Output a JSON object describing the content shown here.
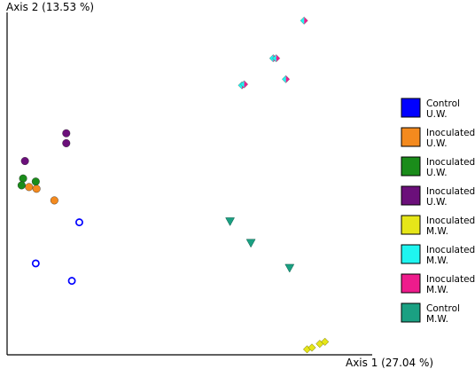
{
  "chart_data": {
    "type": "scatter",
    "title": "",
    "xlabel": "Axis 1 (27.04 %)",
    "ylabel": "Axis 2 (13.53 %)",
    "xlim": [
      0,
      100
    ],
    "ylim": [
      0,
      100
    ],
    "grid": false,
    "legend_position": "right",
    "legend": [
      {
        "line1": "Control",
        "line2": "U.W.",
        "color": "#0000ff"
      },
      {
        "line1": "Inoculated",
        "line2": "U.W.",
        "color": "#f48a1e"
      },
      {
        "line1": "Inoculated",
        "line2": "U.W.",
        "color": "#1a8c1a"
      },
      {
        "line1": "Inoculated",
        "line2": "U.W.",
        "color": "#6b0f7a"
      },
      {
        "line1": "Inoculated",
        "line2": "M.W.",
        "color": "#e6e619"
      },
      {
        "line1": "Inoculated",
        "line2": "M.W.",
        "color": "#1ff5f0"
      },
      {
        "line1": "Inoculated",
        "line2": "M.W.",
        "color": "#ee1c8c"
      },
      {
        "line1": "Control",
        "line2": "M.W.",
        "color": "#1aa082"
      }
    ],
    "series": [
      {
        "marker": "open-circle",
        "color": "#0000ff",
        "points": [
          [
            19.4,
            38.7
          ],
          [
            7.7,
            26.7
          ],
          [
            17.4,
            21.6
          ]
        ]
      },
      {
        "marker": "circle",
        "color": "#f48a1e",
        "points": [
          [
            5.9,
            49.0
          ],
          [
            7.9,
            48.5
          ],
          [
            12.7,
            45.1
          ]
        ]
      },
      {
        "marker": "circle",
        "color": "#1a8c1a",
        "points": [
          [
            4.3,
            51.5
          ],
          [
            7.7,
            50.6
          ],
          [
            3.9,
            49.5
          ]
        ]
      },
      {
        "marker": "circle",
        "color": "#6b0f7a",
        "points": [
          [
            4.8,
            56.6
          ],
          [
            15.9,
            64.7
          ],
          [
            15.9,
            61.8
          ]
        ]
      },
      {
        "marker": "diamond",
        "color": "#e6e619",
        "points": [
          [
            80.6,
            1.6
          ],
          [
            81.9,
            2.1
          ],
          [
            84.0,
            3.2
          ],
          [
            85.4,
            3.8
          ]
        ]
      },
      {
        "marker": "half-diamond",
        "color": "#1ff5f0",
        "color2": "#ee1c8c",
        "points": [
          [
            79.8,
            97.6
          ],
          [
            71.5,
            86.6
          ],
          [
            72.3,
            86.6
          ],
          [
            63.1,
            78.7
          ],
          [
            63.7,
            79.0
          ],
          [
            74.9,
            80.5
          ]
        ]
      },
      {
        "marker": "triangle-down",
        "color": "#1aa082",
        "points": [
          [
            59.9,
            39.0
          ],
          [
            65.5,
            32.7
          ],
          [
            75.9,
            25.4
          ]
        ]
      }
    ]
  }
}
